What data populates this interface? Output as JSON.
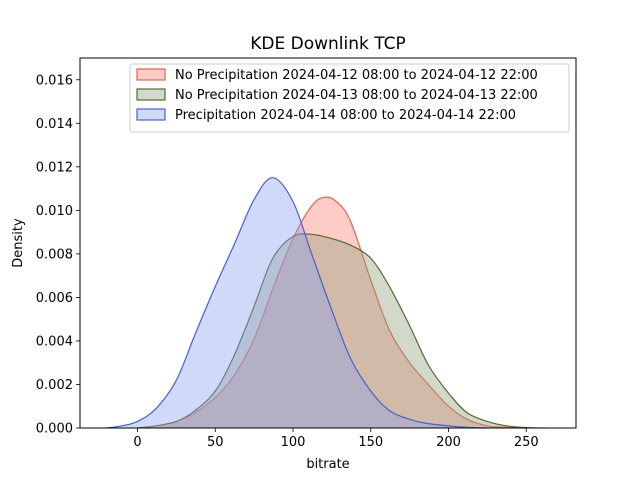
{
  "chart_data": {
    "type": "area",
    "title": "KDE Downlink TCP",
    "xlabel": "bitrate",
    "ylabel": "Density",
    "xlim": [
      -37,
      282
    ],
    "ylim": [
      0,
      0.017
    ],
    "xticks": [
      0,
      50,
      100,
      150,
      200,
      250
    ],
    "xtick_labels": [
      "0",
      "50",
      "100",
      "150",
      "200",
      "250"
    ],
    "yticks": [
      0,
      0.002,
      0.004,
      0.006,
      0.008,
      0.01,
      0.012,
      0.014,
      0.016
    ],
    "ytick_labels": [
      "0.000",
      "0.002",
      "0.004",
      "0.006",
      "0.008",
      "0.010",
      "0.012",
      "0.014",
      "0.016"
    ],
    "grid": false,
    "legend_position": "upper-right",
    "series": [
      {
        "name": "No Precipitation 2024-04-12 08:00 to 2024-04-12 22:00",
        "line_color": "#e8604c",
        "fill_color": "#fa8072",
        "points": [
          [
            0,
            0
          ],
          [
            12,
            0.0001
          ],
          [
            25,
            0.0003
          ],
          [
            37,
            0.0007
          ],
          [
            50,
            0.0014
          ],
          [
            62,
            0.0024
          ],
          [
            75,
            0.0041
          ],
          [
            87,
            0.0064
          ],
          [
            100,
            0.0087
          ],
          [
            112,
            0.0102
          ],
          [
            120,
            0.0106
          ],
          [
            128,
            0.0104
          ],
          [
            137,
            0.0095
          ],
          [
            150,
            0.0068
          ],
          [
            162,
            0.0045
          ],
          [
            175,
            0.003
          ],
          [
            187,
            0.002
          ],
          [
            200,
            0.001
          ],
          [
            212,
            0.0004
          ],
          [
            225,
            0.0001
          ],
          [
            237,
            3e-05
          ],
          [
            250,
            0
          ]
        ]
      },
      {
        "name": "No Precipitation 2024-04-13 08:00 to 2024-04-13 22:00",
        "line_color": "#556b2f",
        "fill_color": "#8fa07a",
        "points": [
          [
            0,
            0
          ],
          [
            12,
            0.0001
          ],
          [
            25,
            0.0003
          ],
          [
            37,
            0.0008
          ],
          [
            50,
            0.0017
          ],
          [
            62,
            0.0033
          ],
          [
            75,
            0.0056
          ],
          [
            87,
            0.0078
          ],
          [
            100,
            0.0088
          ],
          [
            112,
            0.0089
          ],
          [
            125,
            0.0087
          ],
          [
            137,
            0.0084
          ],
          [
            150,
            0.0078
          ],
          [
            162,
            0.0065
          ],
          [
            175,
            0.0047
          ],
          [
            187,
            0.0029
          ],
          [
            200,
            0.0016
          ],
          [
            212,
            0.0007
          ],
          [
            225,
            0.0003
          ],
          [
            237,
            0.0001
          ],
          [
            250,
            2e-05
          ],
          [
            262,
            0
          ]
        ]
      },
      {
        "name": "Precipitation 2024-04-14 08:00 to 2024-04-14 22:00",
        "line_color": "#4361d8",
        "fill_color": "#8c9ff0",
        "points": [
          [
            -20,
            0
          ],
          [
            -10,
            0.0001
          ],
          [
            0,
            0.0003
          ],
          [
            12,
            0.0009
          ],
          [
            25,
            0.0022
          ],
          [
            37,
            0.0043
          ],
          [
            50,
            0.0065
          ],
          [
            62,
            0.0084
          ],
          [
            75,
            0.0105
          ],
          [
            87,
            0.0115
          ],
          [
            100,
            0.0104
          ],
          [
            112,
            0.008
          ],
          [
            125,
            0.0054
          ],
          [
            137,
            0.0032
          ],
          [
            150,
            0.0017
          ],
          [
            162,
            0.0008
          ],
          [
            175,
            0.0004
          ],
          [
            187,
            0.0002
          ],
          [
            200,
            0.0001
          ],
          [
            212,
            3e-05
          ],
          [
            225,
            0
          ]
        ]
      }
    ]
  }
}
